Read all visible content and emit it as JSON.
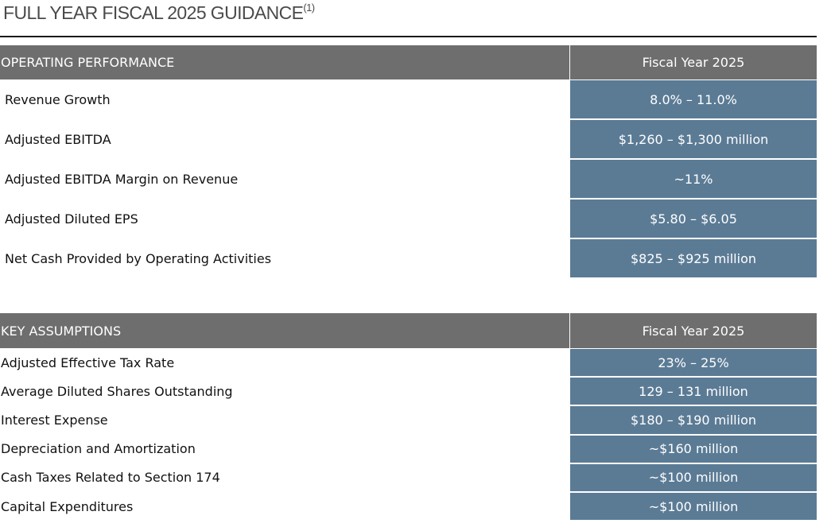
{
  "header": {
    "title": "FULL YEAR FISCAL 2025 GUIDANCE",
    "note": "(1)"
  },
  "tables": [
    {
      "header": [
        "OPERATING PERFORMANCE",
        "Fiscal Year 2025"
      ],
      "rows": [
        [
          "Revenue Growth",
          "8.0% – 11.0%"
        ],
        [
          "Adjusted EBITDA",
          "$1,260 – $1,300 million"
        ],
        [
          "Adjusted EBITDA Margin on Revenue",
          "~11%"
        ],
        [
          "Adjusted Diluted EPS",
          "$5.80 – $6.05"
        ],
        [
          "Net Cash Provided by Operating Activities",
          "$825 – $925 million"
        ]
      ]
    },
    {
      "header": [
        "KEY ASSUMPTIONS",
        "Fiscal Year 2025"
      ],
      "rows": [
        [
          "Adjusted Effective Tax Rate",
          "23% – 25%"
        ],
        [
          "Average Diluted Shares Outstanding",
          "129 – 131 million"
        ],
        [
          "Interest Expense",
          "$180 – $190 million"
        ],
        [
          "Depreciation and Amortization",
          "~$160 million"
        ],
        [
          "Cash Taxes Related to Section 174",
          "~$100 million"
        ],
        [
          "Capital Expenditures",
          "~$100 million"
        ]
      ]
    }
  ]
}
